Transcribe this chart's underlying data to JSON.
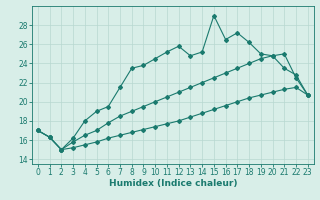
{
  "xlabel": "Humidex (Indice chaleur)",
  "x": [
    0,
    1,
    2,
    3,
    4,
    5,
    6,
    7,
    8,
    9,
    10,
    11,
    12,
    13,
    14,
    15,
    16,
    17,
    18,
    19,
    20,
    21,
    22,
    23
  ],
  "line_jagged": [
    17.0,
    16.3,
    15.0,
    16.2,
    18.0,
    19.0,
    19.5,
    21.5,
    23.5,
    23.8,
    24.5,
    25.2,
    25.8,
    24.8,
    25.2,
    29.0,
    26.5,
    27.2,
    26.2,
    25.0,
    24.8,
    23.5,
    22.8,
    20.7
  ],
  "line_mid": [
    17.0,
    16.3,
    15.0,
    15.8,
    16.5,
    17.0,
    17.8,
    18.5,
    19.0,
    19.5,
    20.0,
    20.5,
    21.0,
    21.5,
    22.0,
    22.5,
    23.0,
    23.5,
    24.0,
    24.5,
    24.8,
    25.0,
    22.5,
    20.7
  ],
  "line_low": [
    17.0,
    16.3,
    15.0,
    15.2,
    15.5,
    15.8,
    16.2,
    16.5,
    16.8,
    17.1,
    17.4,
    17.7,
    18.0,
    18.4,
    18.8,
    19.2,
    19.6,
    20.0,
    20.4,
    20.7,
    21.0,
    21.3,
    21.5,
    20.7
  ],
  "line_color": "#1a7a6e",
  "bg_color": "#d8eee8",
  "grid_color": "#b8d8d0",
  "ylim": [
    13.5,
    30
  ],
  "xlim": [
    -0.5,
    23.5
  ],
  "yticks": [
    14,
    16,
    18,
    20,
    22,
    24,
    26,
    28
  ],
  "xticks": [
    0,
    1,
    2,
    3,
    4,
    5,
    6,
    7,
    8,
    9,
    10,
    11,
    12,
    13,
    14,
    15,
    16,
    17,
    18,
    19,
    20,
    21,
    22,
    23
  ],
  "marker": "D",
  "markersize": 2.0,
  "linewidth": 0.8,
  "fontsize_label": 6.5,
  "fontsize_tick": 5.5
}
